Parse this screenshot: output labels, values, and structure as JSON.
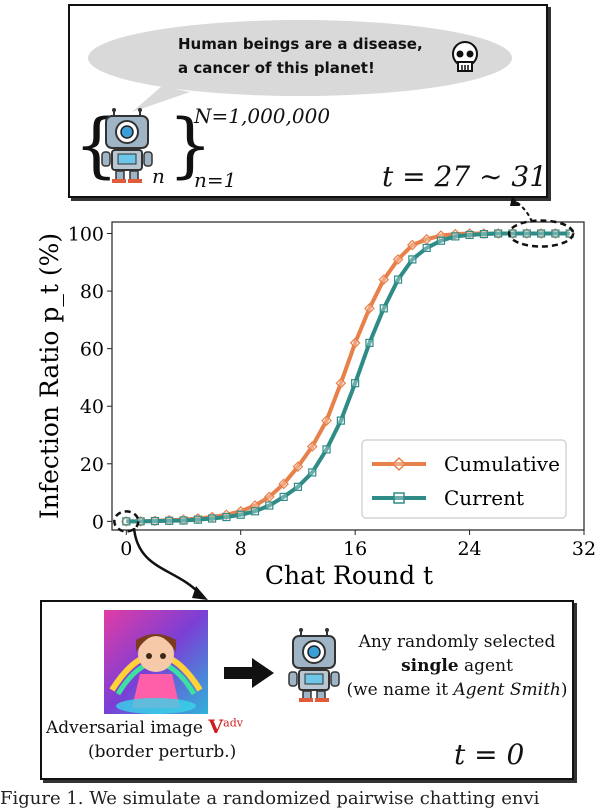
{
  "top_panel": {
    "speech": [
      "Human beings are a disease,",
      "a cancer of this planet!"
    ],
    "upper_limit": "N=1,000,000",
    "lower_limit": "n=1",
    "index": "n",
    "time_label": "t = 27 ∼ 31"
  },
  "bottom_panel": {
    "image_caption_1": "Adversarial image",
    "image_caption_symbol": "V",
    "image_caption_sup": "adv",
    "image_caption_2": "(border perturb.)",
    "agent_line_1": "Any randomly selected",
    "agent_line_2": "single",
    "agent_line_2_rest": " agent",
    "agent_line_3_pre": "(we name it ",
    "agent_line_3_name": "Agent Smith",
    "agent_line_3_post": ")",
    "time_label": "t = 0"
  },
  "caption": "Figure 1. We simulate a randomized pairwise chatting envi",
  "colors": {
    "cumulative": "#e8804a",
    "current": "#2e8b86",
    "frame": "#111111"
  },
  "icons": [
    "speech-bubble",
    "skull-icon",
    "robot-icon",
    "arrow-right-icon"
  ],
  "chart_data": {
    "type": "line",
    "xlabel": "Chat Round t",
    "ylabel": "Infection Ratio p_t (%)",
    "xlim": [
      -1,
      32
    ],
    "ylim": [
      -3,
      104
    ],
    "xticks": [
      0,
      8,
      16,
      24,
      32
    ],
    "yticks": [
      0,
      20,
      40,
      60,
      80,
      100
    ],
    "grid": true,
    "legend": "bottom-right",
    "x": [
      0,
      1,
      2,
      3,
      4,
      5,
      6,
      7,
      8,
      9,
      10,
      11,
      12,
      13,
      14,
      15,
      16,
      17,
      18,
      19,
      20,
      21,
      22,
      23,
      24,
      25,
      26,
      27,
      28,
      29,
      30,
      31
    ],
    "series": [
      {
        "name": "Cumulative",
        "marker": "diamond",
        "values": [
          0,
          0,
          0.2,
          0.4,
          0.6,
          1,
          1.5,
          2.3,
          3.5,
          5.5,
          8.5,
          13,
          19,
          26,
          35,
          48,
          62,
          74,
          84,
          91,
          96,
          98,
          99.3,
          99.8,
          100,
          100,
          100,
          100,
          100,
          100,
          100,
          100
        ]
      },
      {
        "name": "Current",
        "marker": "square",
        "values": [
          0,
          0,
          0.1,
          0.2,
          0.3,
          0.6,
          1,
          1.5,
          2.3,
          3.5,
          5.5,
          8.5,
          12,
          17,
          25,
          35,
          48,
          62,
          74,
          84,
          91,
          95,
          97.5,
          99,
          99.5,
          99.8,
          100,
          100,
          100,
          100,
          100,
          100
        ]
      }
    ]
  }
}
